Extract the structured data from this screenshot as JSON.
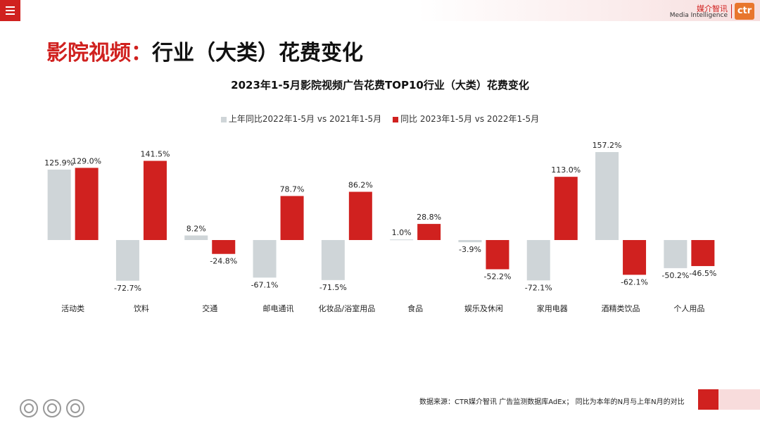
{
  "header": {
    "logo_cn": "媒介智讯",
    "logo_en": "Media Intelligence",
    "logo_mark": "ctr"
  },
  "page_title": {
    "prefix": "影院视频：",
    "main": "行业（大类）花费变化"
  },
  "colors": {
    "accent": "#d0211f",
    "gray": "#cfd5d8",
    "text": "#222222"
  },
  "chart_data": {
    "type": "bar",
    "title": "2023年1-5月影院视频广告花费TOP10行业（大类）花费变化",
    "categories": [
      "活动类",
      "饮料",
      "交通",
      "邮电通讯",
      "化妆品/浴室用品",
      "食品",
      "娱乐及休闲",
      "家用电器",
      "酒精类饮品",
      "个人用品"
    ],
    "series": [
      {
        "name": "上年同比2022年1-5月 vs 2021年1-5月",
        "color": "#cfd5d8",
        "values": [
          125.9,
          -72.7,
          8.2,
          -67.1,
          -71.5,
          1.0,
          -3.9,
          -72.1,
          157.2,
          -50.2
        ],
        "labels": [
          "125.9%",
          "-72.7%",
          "8.2%",
          "-67.1%",
          "-71.5%",
          "1.0%",
          "-3.9%",
          "-72.1%",
          "157.2%",
          "-50.2%"
        ]
      },
      {
        "name": "同比 2023年1-5月 vs 2022年1-5月",
        "color": "#d0211f",
        "values": [
          129.0,
          141.5,
          -24.8,
          78.7,
          86.2,
          28.8,
          -52.2,
          113.0,
          -62.1,
          -46.5
        ],
        "labels": [
          "129.0%",
          "141.5%",
          "-24.8%",
          "78.7%",
          "86.2%",
          "28.8%",
          "-52.2%",
          "113.0%",
          "-62.1%",
          "-46.5%"
        ]
      }
    ],
    "ylim": [
      -90,
      160
    ],
    "grid": false,
    "legend_position": "top"
  },
  "footer": {
    "source": "数据来源：CTR媒介智讯 广告监测数据库AdEx；  同比为本年的N月与上年N月的对比"
  }
}
